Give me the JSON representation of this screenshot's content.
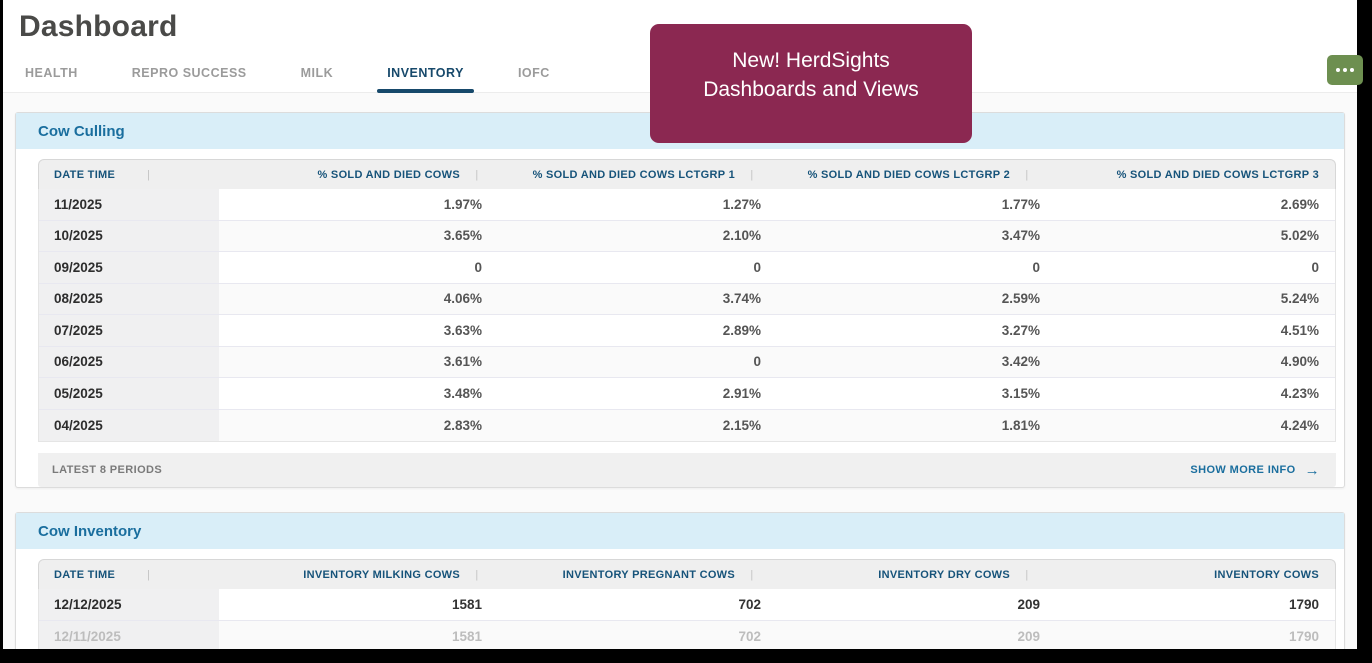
{
  "page": {
    "title": "Dashboard"
  },
  "tabs": [
    {
      "label": "HEALTH",
      "active": false
    },
    {
      "label": "REPRO SUCCESS",
      "active": false
    },
    {
      "label": "MILK",
      "active": false
    },
    {
      "label": "INVENTORY",
      "active": true
    },
    {
      "label": "IOFC",
      "active": false
    }
  ],
  "tooltip": {
    "line1": "New! HerdSights",
    "line2": "Dashboards and Views",
    "bg_color": "#8b2851",
    "text_color": "#ffffff"
  },
  "menu_button": {
    "icon": "ellipsis-icon",
    "bg_color": "#6d8f50"
  },
  "colors": {
    "active_tab": "#17496b",
    "section_title": "#1a6e9e",
    "section_band": "#d9eef8",
    "header_text": "#16537a"
  },
  "panels": [
    {
      "title": "Cow Culling",
      "columns": [
        "DATE TIME",
        "% SOLD AND DIED COWS",
        "% SOLD AND DIED COWS LCTGRP 1",
        "% SOLD AND DIED COWS LCTGRP 2",
        "% SOLD AND DIED COWS LCTGRP 3"
      ],
      "rows": [
        {
          "date": "11/2025",
          "values": [
            "1.97%",
            "1.27%",
            "1.77%",
            "2.69%"
          ]
        },
        {
          "date": "10/2025",
          "values": [
            "3.65%",
            "2.10%",
            "3.47%",
            "5.02%"
          ]
        },
        {
          "date": "09/2025",
          "values": [
            "0",
            "0",
            "0",
            "0"
          ]
        },
        {
          "date": "08/2025",
          "values": [
            "4.06%",
            "3.74%",
            "2.59%",
            "5.24%"
          ]
        },
        {
          "date": "07/2025",
          "values": [
            "3.63%",
            "2.89%",
            "3.27%",
            "4.51%"
          ]
        },
        {
          "date": "06/2025",
          "values": [
            "3.61%",
            "0",
            "3.42%",
            "4.90%"
          ]
        },
        {
          "date": "05/2025",
          "values": [
            "3.48%",
            "2.91%",
            "3.15%",
            "4.23%"
          ]
        },
        {
          "date": "04/2025",
          "values": [
            "2.83%",
            "2.15%",
            "1.81%",
            "4.24%"
          ]
        }
      ],
      "footer_left": "LATEST 8 PERIODS",
      "footer_right": "SHOW MORE INFO",
      "footer_arrow": "→"
    },
    {
      "title": "Cow Inventory",
      "columns": [
        "DATE TIME",
        "INVENTORY MILKING COWS",
        "INVENTORY PREGNANT COWS",
        "INVENTORY DRY COWS",
        "INVENTORY COWS"
      ],
      "rows": [
        {
          "date": "12/12/2025",
          "values": [
            "1581",
            "702",
            "209",
            "1790"
          ],
          "emphasis": true
        },
        {
          "date": "12/11/2025",
          "values": [
            "1581",
            "702",
            "209",
            "1790"
          ],
          "faded": true
        }
      ]
    }
  ]
}
